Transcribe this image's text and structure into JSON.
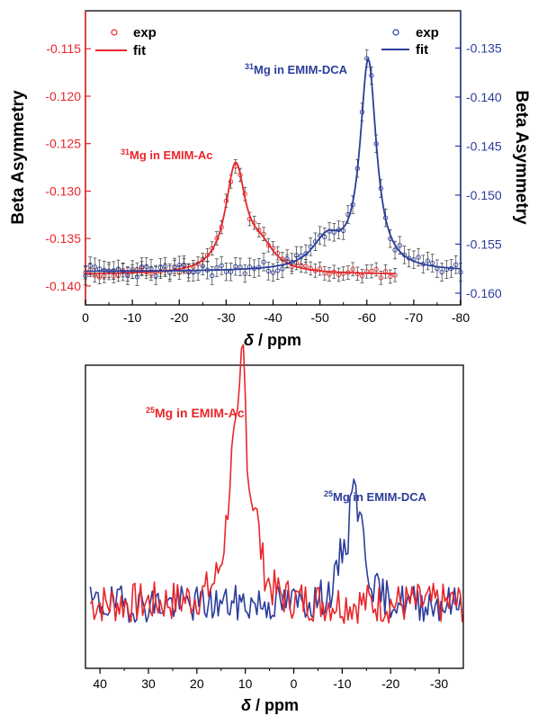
{
  "colors": {
    "red": "#e8262b",
    "blue": "#2b3d9c",
    "black": "#000000"
  },
  "chart_data": [
    {
      "type": "scatter",
      "xlabel_italic": "δ",
      "xlabel_rest": " / ppm",
      "ylabel_left": "Beta Asymmetry",
      "ylabel_right": "Beta Asymmetry",
      "xlim": [
        0,
        -80
      ],
      "ylim_left": [
        -0.142,
        -0.111
      ],
      "ylim_right": [
        -0.1612,
        -0.1312
      ],
      "x_ticks": [
        0,
        -10,
        -20,
        -30,
        -40,
        -50,
        -60,
        -70,
        -80
      ],
      "x_tick_labels": [
        "0",
        "-10",
        "-20",
        "-30",
        "-40",
        "-50",
        "-60",
        "-70",
        "-80"
      ],
      "y_left_ticks": [
        -0.115,
        -0.12,
        -0.125,
        -0.13,
        -0.135,
        -0.14
      ],
      "y_left_tick_labels": [
        "-0.115",
        "-0.120",
        "-0.125",
        "-0.130",
        "-0.135",
        "-0.140"
      ],
      "y_right_ticks": [
        -0.135,
        -0.14,
        -0.145,
        -0.15,
        -0.155,
        -0.16
      ],
      "y_right_tick_labels": [
        "-0.135",
        "-0.140",
        "-0.145",
        "-0.150",
        "-0.155",
        "-0.160"
      ],
      "legend_left": {
        "exp": "exp",
        "fit": "fit",
        "placement": "top-left"
      },
      "legend_right": {
        "exp": "exp",
        "fit": "fit",
        "placement": "top-right"
      },
      "annotations": [
        {
          "sup": "31",
          "text": "Mg in EMIM-Ac",
          "color": "red"
        },
        {
          "sup": "31",
          "text": "Mg in EMIM-DCA",
          "color": "blue"
        }
      ],
      "series": [
        {
          "axis": "left",
          "color": "red",
          "x_range": [
            0,
            -66
          ],
          "x_step": -1,
          "baseline": -0.1388,
          "peaks": [
            {
              "center": -32,
              "amplitude": 0.0112,
              "width": 2.6
            },
            {
              "center": -37.5,
              "amplitude": 0.0022,
              "width": 3.5
            }
          ],
          "error": 0.0007
        },
        {
          "axis": "right",
          "color": "blue",
          "x_range": [
            0,
            -80
          ],
          "x_step": -1,
          "baseline": -0.1578,
          "peaks": [
            {
              "center": -60.3,
              "amplitude": 0.0212,
              "width": 2.1
            },
            {
              "center": -51.5,
              "amplitude": 0.003,
              "width": 3.8
            }
          ],
          "error": 0.0009
        }
      ]
    },
    {
      "type": "line",
      "xlabel_italic": "δ",
      "xlabel_rest": " / ppm",
      "xlim": [
        43,
        -35
      ],
      "ylim": [
        -1.4,
        5.2
      ],
      "x_ticks": [
        40,
        30,
        20,
        10,
        0,
        -10,
        -20,
        -30
      ],
      "x_tick_labels": [
        "40",
        "30",
        "20",
        "10",
        "0",
        "-10",
        "-20",
        "-30"
      ],
      "annotations": [
        {
          "sup": "25",
          "text": "Mg in EMIM-Ac",
          "color": "red"
        },
        {
          "sup": "25",
          "text": "Mg in EMIM-DCA",
          "color": "blue"
        }
      ],
      "series": [
        {
          "color": "red",
          "x_range": [
            42,
            -35
          ],
          "x_step": -0.4,
          "peaks": [
            {
              "center": 10.5,
              "amplitude": 4.3,
              "width": 0.9
            },
            {
              "center": 12.5,
              "amplitude": 2.6,
              "width": 1.6
            },
            {
              "center": 8.0,
              "amplitude": 1.4,
              "width": 1.3
            }
          ],
          "noise": 0.45,
          "seed": 7
        },
        {
          "color": "blue",
          "x_range": [
            42,
            -35
          ],
          "x_step": -0.4,
          "peaks": [
            {
              "center": -12.3,
              "amplitude": 2.4,
              "width": 0.8
            },
            {
              "center": -14.0,
              "amplitude": 1.2,
              "width": 1.4
            },
            {
              "center": -10.0,
              "amplitude": 0.8,
              "width": 1.2
            }
          ],
          "noise": 0.4,
          "seed": 19
        }
      ]
    }
  ]
}
